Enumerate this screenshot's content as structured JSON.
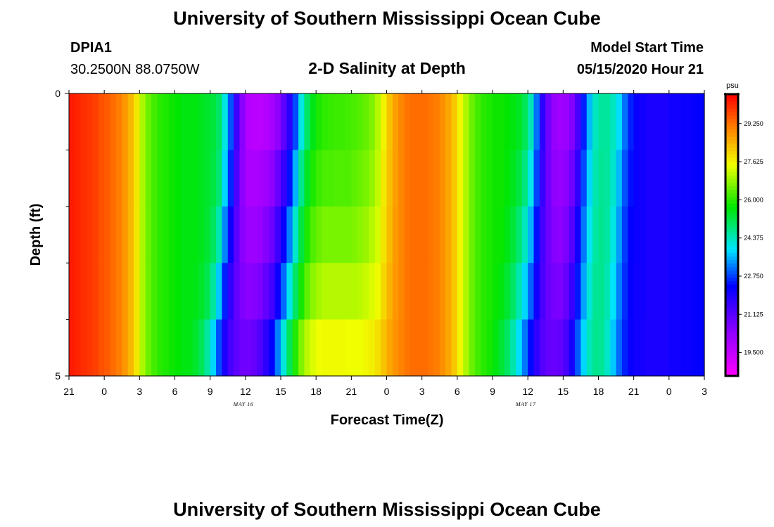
{
  "title_top": "University of Southern Mississippi Ocean Cube",
  "title_bottom": "University of Southern Mississippi Ocean Cube",
  "header": {
    "station_name": "DPIA1",
    "station_coords": "30.2500N 88.0750W",
    "plot_title": "2-D Salinity at Depth",
    "model_start_label": "Model Start Time",
    "model_start_value": "05/15/2020 Hour 21"
  },
  "chart_data": {
    "type": "heatmap",
    "title": "2-D Salinity at Depth",
    "xlabel": "Forecast Time(Z)",
    "ylabel": "Depth (ft)",
    "x_tick_labels": [
      "21",
      "0",
      "3",
      "6",
      "9",
      "12",
      "15",
      "18",
      "21",
      "0",
      "3",
      "6",
      "9",
      "12",
      "15",
      "18",
      "21",
      "0",
      "3"
    ],
    "x_hours_range": [
      0,
      54
    ],
    "y_tick_labels": [
      "0",
      "5"
    ],
    "ylim": [
      0,
      5
    ],
    "y_minor_ticks": [
      1,
      2,
      3,
      4
    ],
    "date_labels": [
      {
        "text": "MAY 16",
        "hour": 15
      },
      {
        "text": "MAY 17",
        "hour": 39
      }
    ],
    "colorbar": {
      "unit": "psu",
      "min": 18.5,
      "max": 30.5,
      "tick_values": [
        19.5,
        21.125,
        22.75,
        24.375,
        26.0,
        27.625,
        29.25
      ],
      "tick_labels": [
        "19.500",
        "21.125",
        "22.750",
        "24.375",
        "26.000",
        "27.625",
        "29.250"
      ]
    },
    "depth_levels": [
      0,
      1,
      2,
      3,
      4,
      5
    ],
    "hours": [
      0,
      0.5,
      1,
      1.5,
      2,
      2.5,
      3,
      3.5,
      4,
      4.5,
      5,
      5.5,
      6,
      6.5,
      7,
      7.5,
      8,
      8.5,
      9,
      9.5,
      10,
      10.5,
      11,
      11.5,
      12,
      12.5,
      13,
      13.5,
      14,
      14.5,
      15,
      15.5,
      16,
      16.5,
      17,
      17.5,
      18,
      18.5,
      19,
      19.5,
      20,
      20.5,
      21,
      21.5,
      22,
      22.5,
      23,
      23.5,
      24,
      24.5,
      25,
      25.5,
      26,
      26.5,
      27,
      27.5,
      28,
      28.5,
      29,
      29.5,
      30,
      30.5,
      31,
      31.5,
      32,
      32.5,
      33,
      33.5,
      34,
      34.5,
      35,
      35.5,
      36,
      36.5,
      37,
      37.5,
      38,
      38.5,
      39,
      39.5,
      40,
      40.5,
      41,
      41.5,
      42,
      42.5,
      43,
      43.5,
      44,
      44.5,
      45,
      45.5,
      46,
      46.5,
      47,
      47.5,
      48,
      48.5,
      49,
      49.5,
      50,
      50.5,
      51,
      51.5,
      52,
      52.5,
      53,
      53.5
    ],
    "salinity": [
      [
        30.2,
        30.1,
        30.0,
        29.9,
        29.8,
        29.6,
        29.5,
        29.3,
        29.1,
        28.8,
        28.4,
        27.8,
        27.0,
        26.5,
        26.2,
        26.0,
        25.9,
        25.8,
        25.7,
        25.6,
        25.6,
        25.6,
        25.5,
        25.4,
        25.3,
        25.0,
        24.2,
        23.0,
        21.6,
        20.5,
        19.7,
        19.5,
        19.5,
        19.6,
        19.8,
        20.1,
        20.8,
        21.5,
        22.5,
        23.8,
        24.8,
        25.4,
        25.8,
        26.0,
        26.1,
        26.1,
        26.1,
        26.2,
        26.2,
        26.3,
        26.4,
        26.6,
        27.0,
        27.6,
        28.2,
        28.7,
        29.0,
        29.2,
        29.3,
        29.3,
        29.3,
        29.2,
        29.1,
        28.9,
        28.6,
        28.2,
        27.6,
        27.0,
        26.5,
        26.2,
        26.0,
        25.9,
        25.8,
        25.8,
        25.7,
        25.6,
        25.5,
        25.2,
        24.5,
        23.2,
        21.8,
        20.8,
        20.2,
        20.0,
        20.1,
        20.4,
        21.2,
        22.4,
        23.5,
        24.3,
        24.6,
        24.6,
        24.4,
        24.0,
        23.2,
        22.6,
        22.2,
        22.1,
        22.0,
        22.0,
        22.0,
        22.0,
        22.1,
        22.1,
        22.2,
        22.2,
        22.3,
        22.3
      ],
      [
        30.2,
        30.1,
        30.0,
        29.9,
        29.8,
        29.6,
        29.5,
        29.3,
        29.1,
        28.8,
        28.4,
        27.8,
        27.0,
        26.5,
        26.2,
        26.0,
        25.9,
        25.8,
        25.7,
        25.6,
        25.6,
        25.6,
        25.5,
        25.4,
        25.3,
        25.0,
        24.0,
        22.8,
        21.4,
        20.4,
        19.8,
        19.8,
        19.8,
        19.9,
        20.1,
        20.6,
        21.3,
        22.1,
        23.2,
        24.4,
        25.2,
        25.7,
        26.0,
        26.1,
        26.1,
        26.2,
        26.2,
        26.2,
        26.3,
        26.4,
        26.5,
        26.7,
        27.1,
        27.7,
        28.3,
        28.7,
        29.0,
        29.2,
        29.3,
        29.3,
        29.3,
        29.2,
        29.1,
        28.9,
        28.6,
        28.2,
        27.6,
        27.0,
        26.5,
        26.2,
        26.0,
        25.9,
        25.8,
        25.8,
        25.7,
        25.6,
        25.4,
        25.0,
        24.3,
        23.0,
        21.7,
        20.8,
        20.3,
        20.2,
        20.3,
        20.7,
        21.5,
        22.7,
        23.7,
        24.4,
        24.6,
        24.6,
        24.3,
        23.7,
        23.0,
        22.5,
        22.2,
        22.1,
        22.0,
        22.0,
        22.0,
        22.0,
        22.1,
        22.1,
        22.2,
        22.2,
        22.3,
        22.3
      ],
      [
        30.2,
        30.1,
        30.0,
        29.9,
        29.8,
        29.6,
        29.5,
        29.3,
        29.1,
        28.8,
        28.4,
        27.8,
        27.0,
        26.5,
        26.2,
        26.0,
        25.9,
        25.8,
        25.7,
        25.6,
        25.6,
        25.6,
        25.5,
        25.4,
        25.2,
        24.8,
        23.6,
        22.4,
        21.2,
        20.4,
        20.0,
        20.0,
        20.1,
        20.3,
        20.6,
        21.2,
        21.9,
        22.8,
        23.9,
        25.0,
        25.7,
        26.1,
        26.3,
        26.4,
        26.4,
        26.4,
        26.4,
        26.4,
        26.5,
        26.6,
        26.7,
        26.9,
        27.2,
        27.8,
        28.3,
        28.7,
        29.0,
        29.2,
        29.3,
        29.3,
        29.3,
        29.2,
        29.1,
        28.9,
        28.6,
        28.2,
        27.6,
        27.0,
        26.5,
        26.2,
        26.0,
        25.9,
        25.8,
        25.8,
        25.6,
        25.4,
        25.1,
        24.6,
        23.8,
        22.6,
        21.5,
        20.8,
        20.4,
        20.3,
        20.5,
        21.0,
        21.9,
        23.0,
        23.9,
        24.5,
        24.7,
        24.6,
        24.2,
        23.5,
        22.8,
        22.4,
        22.2,
        22.1,
        22.0,
        22.0,
        22.0,
        22.0,
        22.1,
        22.1,
        22.2,
        22.2,
        22.3,
        22.3
      ],
      [
        30.2,
        30.1,
        30.0,
        29.9,
        29.8,
        29.6,
        29.5,
        29.3,
        29.1,
        28.8,
        28.4,
        27.8,
        27.0,
        26.5,
        26.2,
        26.0,
        25.9,
        25.8,
        25.7,
        25.6,
        25.6,
        25.6,
        25.5,
        25.3,
        24.9,
        24.1,
        22.9,
        21.9,
        21.0,
        20.5,
        20.3,
        20.3,
        20.4,
        20.7,
        21.1,
        21.8,
        22.6,
        23.6,
        24.6,
        25.5,
        26.1,
        26.5,
        26.7,
        26.8,
        26.8,
        26.8,
        26.8,
        26.8,
        26.8,
        26.9,
        27.0,
        27.2,
        27.4,
        27.9,
        28.4,
        28.8,
        29.0,
        29.2,
        29.3,
        29.3,
        29.3,
        29.2,
        29.1,
        28.9,
        28.6,
        28.2,
        27.6,
        27.0,
        26.5,
        26.2,
        26.0,
        25.9,
        25.8,
        25.7,
        25.5,
        25.2,
        24.7,
        24.1,
        23.3,
        22.3,
        21.4,
        20.9,
        20.6,
        20.5,
        20.8,
        21.4,
        22.3,
        23.3,
        24.1,
        24.6,
        24.7,
        24.5,
        24.0,
        23.3,
        22.7,
        22.3,
        22.2,
        22.1,
        22.0,
        22.0,
        22.0,
        22.0,
        22.1,
        22.1,
        22.2,
        22.2,
        22.3,
        22.3
      ],
      [
        30.2,
        30.1,
        30.0,
        29.9,
        29.8,
        29.6,
        29.5,
        29.3,
        29.1,
        28.8,
        28.4,
        27.8,
        27.0,
        26.5,
        26.2,
        26.0,
        25.9,
        25.8,
        25.7,
        25.6,
        25.6,
        25.5,
        25.3,
        25.0,
        24.3,
        23.3,
        22.2,
        21.5,
        21.0,
        20.7,
        20.6,
        20.7,
        20.9,
        21.3,
        21.8,
        22.6,
        23.5,
        24.5,
        25.4,
        26.2,
        26.7,
        27.0,
        27.2,
        27.3,
        27.3,
        27.3,
        27.3,
        27.3,
        27.3,
        27.3,
        27.4,
        27.5,
        27.7,
        28.1,
        28.5,
        28.8,
        29.0,
        29.2,
        29.3,
        29.3,
        29.3,
        29.2,
        29.1,
        28.9,
        28.6,
        28.2,
        27.6,
        27.0,
        26.5,
        26.2,
        26.0,
        25.9,
        25.7,
        25.5,
        25.2,
        24.8,
        24.2,
        23.5,
        22.7,
        21.9,
        21.3,
        20.9,
        20.8,
        20.8,
        21.1,
        21.8,
        22.7,
        23.6,
        24.3,
        24.7,
        24.7,
        24.4,
        23.8,
        23.1,
        22.6,
        22.3,
        22.1,
        22.1,
        22.0,
        22.0,
        22.0,
        22.0,
        22.1,
        22.1,
        22.2,
        22.2,
        22.3,
        22.3
      ],
      [
        30.2,
        30.1,
        30.0,
        29.9,
        29.8,
        29.6,
        29.5,
        29.3,
        29.1,
        28.8,
        28.4,
        27.8,
        27.0,
        26.5,
        26.2,
        26.0,
        25.9,
        25.8,
        25.7,
        25.6,
        25.5,
        25.3,
        24.9,
        24.2,
        23.3,
        22.4,
        21.7,
        21.3,
        21.1,
        21.0,
        21.0,
        21.2,
        21.6,
        22.2,
        22.9,
        23.8,
        24.8,
        25.7,
        26.5,
        27.1,
        27.5,
        27.7,
        27.8,
        27.8,
        27.8,
        27.8,
        27.8,
        27.7,
        27.7,
        27.7,
        27.8,
        27.9,
        28.1,
        28.4,
        28.7,
        28.9,
        29.1,
        29.2,
        29.3,
        29.3,
        29.3,
        29.2,
        29.1,
        28.9,
        28.6,
        28.2,
        27.6,
        27.0,
        26.5,
        26.2,
        26.0,
        25.8,
        25.5,
        25.2,
        24.8,
        24.2,
        23.5,
        22.8,
        22.1,
        21.5,
        21.1,
        21.0,
        21.0,
        21.2,
        21.6,
        22.3,
        23.2,
        24.0,
        24.5,
        24.7,
        24.6,
        24.2,
        23.6,
        23.0,
        22.5,
        22.2,
        22.1,
        22.0,
        22.0,
        22.0,
        22.0,
        22.0,
        22.1,
        22.1,
        22.2,
        22.2,
        22.3,
        22.3
      ]
    ]
  }
}
